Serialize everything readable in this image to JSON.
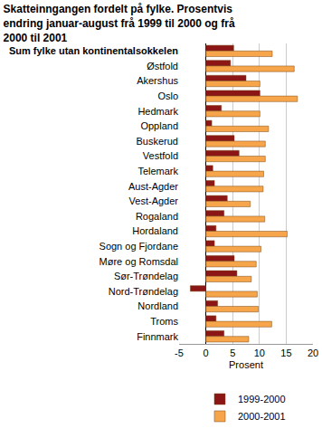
{
  "chart_data": {
    "type": "bar",
    "orientation": "horizontal",
    "title": "Skatteinngangen fordelt på fylke. Prosentvis endring januar-august frå 1999 til 2000 og frå 2000 til 2001",
    "x_label": "Prosent",
    "categories": [
      "Sum fylke utan kontinentalsokkelen",
      "Østfold",
      "Akershus",
      "Oslo",
      "Hedmark",
      "Oppland",
      "Buskerud",
      "Vestfold",
      "Telemark",
      "Aust-Agder",
      "Vest-Agder",
      "Rogaland",
      "Hordaland",
      "Sogn og Fjordane",
      "Møre og Romsdal",
      "Sør-Trøndelag",
      "Nord-Trøndelag",
      "Nordland",
      "Troms",
      "Finnmark"
    ],
    "series": [
      {
        "name": "1999-2000",
        "color": "#8c1515",
        "values": [
          5.2,
          4.6,
          7.5,
          10.1,
          2.9,
          1.1,
          5.3,
          6.2,
          1.3,
          1.6,
          4.0,
          3.4,
          1.9,
          1.6,
          5.3,
          5.8,
          -2.9,
          2.2,
          1.9,
          3.4
        ]
      },
      {
        "name": "2000-2001",
        "color": "#f7a54a",
        "values": [
          12.4,
          16.5,
          10.1,
          17.1,
          10.1,
          11.7,
          11.1,
          11.1,
          10.8,
          10.7,
          8.3,
          11.0,
          15.2,
          10.3,
          9.4,
          8.5,
          9.6,
          9.8,
          12.3,
          8.0
        ]
      }
    ],
    "xlim": [
      -5,
      20
    ],
    "xticks": [
      -5,
      0,
      5,
      10,
      15,
      20
    ],
    "grid": true,
    "legend": "bottom"
  }
}
